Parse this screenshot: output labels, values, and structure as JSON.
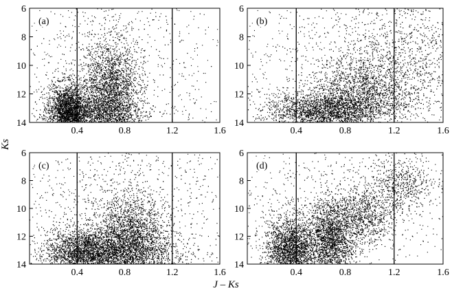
{
  "figure": {
    "xlabel": "J – Ks",
    "ylabel": "Ks",
    "x_ticks": [
      "0.4",
      "0.8",
      "1.2",
      "1.6"
    ],
    "y_ticks": [
      "6",
      "8",
      "10",
      "12",
      "14"
    ]
  },
  "chart_data": [
    {
      "type": "scatter",
      "panel_label": "(a)",
      "xlim": [
        0.0,
        1.6
      ],
      "ylim": [
        6,
        14
      ],
      "y_inverted": true,
      "vertical_lines": [
        0.4,
        1.2
      ],
      "density": "dense",
      "clusters": [
        {
          "x": 0.32,
          "y": 13.2,
          "sx": 0.08,
          "sy": 1.0,
          "n": 2300
        },
        {
          "x": 0.68,
          "y": 11.8,
          "sx": 0.12,
          "sy": 1.7,
          "n": 2300
        },
        {
          "x": 0.55,
          "y": 13.4,
          "sx": 0.22,
          "sy": 0.6,
          "n": 1100
        },
        {
          "x": 0.7,
          "y": 9.0,
          "sx": 0.35,
          "sy": 2.3,
          "n": 350
        }
      ]
    },
    {
      "type": "scatter",
      "panel_label": "(b)",
      "xlim": [
        0.0,
        1.6
      ],
      "ylim": [
        6,
        14
      ],
      "y_inverted": true,
      "vertical_lines": [
        0.4,
        1.2
      ],
      "density": "dense",
      "clusters": [
        {
          "x": 0.62,
          "y": 13.2,
          "sx": 0.22,
          "sy": 0.7,
          "n": 2200
        },
        {
          "x": 0.95,
          "y": 11.9,
          "sx": 0.2,
          "sy": 1.3,
          "n": 1500
        },
        {
          "x": 1.3,
          "y": 9.5,
          "sx": 0.28,
          "sy": 2.3,
          "n": 900
        },
        {
          "x": 0.9,
          "y": 10.0,
          "sx": 0.5,
          "sy": 2.5,
          "n": 500
        }
      ]
    },
    {
      "type": "scatter",
      "panel_label": "(c)",
      "xlim": [
        0.0,
        1.6
      ],
      "ylim": [
        6,
        14
      ],
      "y_inverted": true,
      "vertical_lines": [
        0.4,
        1.2
      ],
      "density": "dense",
      "clusters": [
        {
          "x": 0.45,
          "y": 13.1,
          "sx": 0.15,
          "sy": 0.9,
          "n": 2000
        },
        {
          "x": 0.85,
          "y": 12.0,
          "sx": 0.15,
          "sy": 1.4,
          "n": 2200
        },
        {
          "x": 0.75,
          "y": 13.3,
          "sx": 0.3,
          "sy": 0.6,
          "n": 1100
        },
        {
          "x": 0.8,
          "y": 9.3,
          "sx": 0.4,
          "sy": 2.2,
          "n": 450
        }
      ]
    },
    {
      "type": "scatter",
      "panel_label": "(d)",
      "xlim": [
        0.0,
        1.6
      ],
      "ylim": [
        6,
        14
      ],
      "y_inverted": true,
      "vertical_lines": [
        0.4,
        1.2
      ],
      "density": "dense",
      "clusters": [
        {
          "x": 0.35,
          "y": 13.0,
          "sx": 0.1,
          "sy": 1.2,
          "n": 2200
        },
        {
          "x": 0.68,
          "y": 12.2,
          "sx": 0.1,
          "sy": 1.4,
          "n": 2000
        },
        {
          "x": 0.95,
          "y": 10.5,
          "sx": 0.12,
          "sy": 1.0,
          "n": 800
        },
        {
          "x": 1.25,
          "y": 8.3,
          "sx": 0.12,
          "sy": 1.0,
          "n": 500
        },
        {
          "x": 0.8,
          "y": 9.5,
          "sx": 0.45,
          "sy": 2.3,
          "n": 400
        }
      ]
    }
  ],
  "colors": {
    "points": "#000000",
    "axes": "#000000",
    "background": "#ffffff"
  }
}
